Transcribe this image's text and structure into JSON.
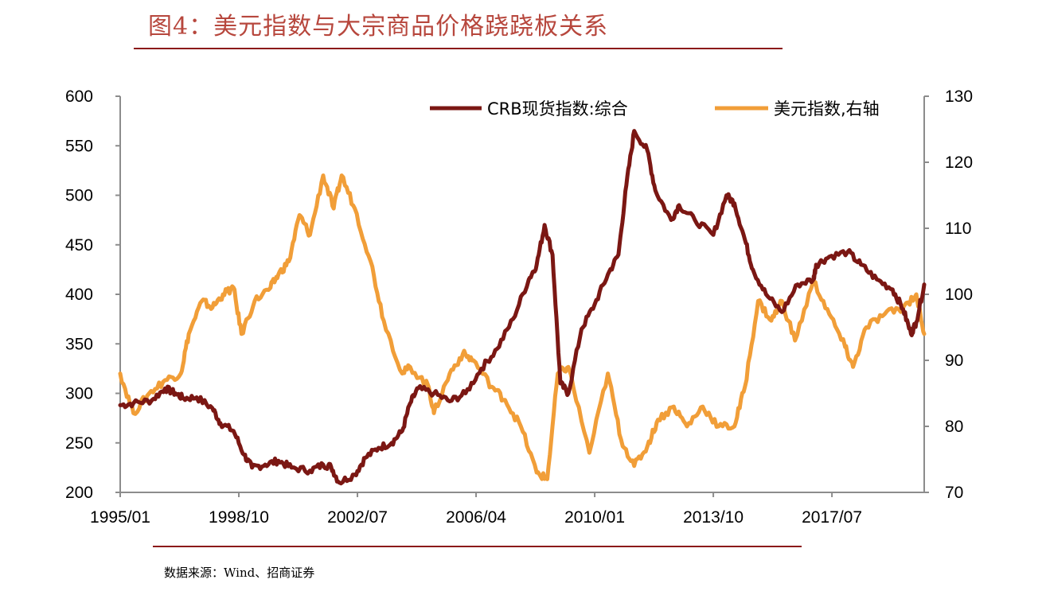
{
  "title": "图4：美元指数与大宗商品价格跷跷板关系",
  "source": "数据来源：Wind、招商证券",
  "chart_data": {
    "type": "line",
    "x_tick_labels": [
      "1995/01",
      "1998/10",
      "2002/07",
      "2006/04",
      "2010/01",
      "2013/10",
      "2017/07"
    ],
    "x_range": [
      "1995/01",
      "2020/06"
    ],
    "y_left": {
      "min": 200,
      "max": 600,
      "ticks": [
        200,
        250,
        300,
        350,
        400,
        450,
        500,
        550,
        600
      ]
    },
    "y_right": {
      "min": 70,
      "max": 130,
      "ticks": [
        70,
        80,
        90,
        100,
        110,
        120,
        130
      ]
    },
    "legend_placement": "top-right",
    "series": [
      {
        "name": "CRB现货指数:综合",
        "axis": "left",
        "color": "#7b1713",
        "points": [
          [
            "1995/01",
            288
          ],
          [
            "1995/06",
            290
          ],
          [
            "1996/01",
            293
          ],
          [
            "1996/06",
            305
          ],
          [
            "1996/10",
            300
          ],
          [
            "1997/01",
            295
          ],
          [
            "1997/06",
            296
          ],
          [
            "1997/12",
            285
          ],
          [
            "1998/03",
            270
          ],
          [
            "1998/08",
            262
          ],
          [
            "1998/12",
            238
          ],
          [
            "1999/03",
            225
          ],
          [
            "1999/08",
            228
          ],
          [
            "2000/01",
            232
          ],
          [
            "2000/06",
            225
          ],
          [
            "2001/01",
            222
          ],
          [
            "2001/06",
            228
          ],
          [
            "2001/09",
            226
          ],
          [
            "2001/12",
            210
          ],
          [
            "2002/06",
            218
          ],
          [
            "2002/10",
            235
          ],
          [
            "2003/03",
            245
          ],
          [
            "2003/08",
            250
          ],
          [
            "2003/12",
            262
          ],
          [
            "2004/03",
            290
          ],
          [
            "2004/06",
            305
          ],
          [
            "2004/12",
            300
          ],
          [
            "2005/06",
            292
          ],
          [
            "2005/12",
            300
          ],
          [
            "2006/06",
            325
          ],
          [
            "2006/12",
            345
          ],
          [
            "2007/06",
            375
          ],
          [
            "2007/12",
            415
          ],
          [
            "2008/03",
            430
          ],
          [
            "2008/06",
            470
          ],
          [
            "2008/09",
            440
          ],
          [
            "2008/12",
            310
          ],
          [
            "2009/03",
            300
          ],
          [
            "2009/08",
            365
          ],
          [
            "2010/01",
            390
          ],
          [
            "2010/06",
            420
          ],
          [
            "2010/10",
            440
          ],
          [
            "2011/01",
            510
          ],
          [
            "2011/04",
            565
          ],
          [
            "2011/09",
            545
          ],
          [
            "2011/12",
            505
          ],
          [
            "2012/06",
            475
          ],
          [
            "2012/09",
            490
          ],
          [
            "2013/03",
            475
          ],
          [
            "2013/10",
            460
          ],
          [
            "2014/03",
            500
          ],
          [
            "2014/06",
            492
          ],
          [
            "2014/10",
            455
          ],
          [
            "2015/01",
            425
          ],
          [
            "2015/06",
            400
          ],
          [
            "2015/12",
            382
          ],
          [
            "2016/06",
            410
          ],
          [
            "2016/12",
            415
          ],
          [
            "2017/01",
            430
          ],
          [
            "2017/06",
            438
          ],
          [
            "2018/01",
            443
          ],
          [
            "2018/06",
            430
          ],
          [
            "2018/12",
            415
          ],
          [
            "2019/06",
            405
          ],
          [
            "2019/10",
            385
          ],
          [
            "2020/01",
            360
          ],
          [
            "2020/03",
            372
          ],
          [
            "2020/06",
            410
          ]
        ]
      },
      {
        "name": "美元指数,右轴",
        "axis": "right",
        "color": "#f19e38",
        "points": [
          [
            "1995/01",
            88
          ],
          [
            "1995/06",
            82
          ],
          [
            "1995/12",
            85
          ],
          [
            "1996/06",
            87
          ],
          [
            "1996/12",
            88
          ],
          [
            "1997/03",
            94
          ],
          [
            "1997/08",
            99
          ],
          [
            "1997/12",
            98
          ],
          [
            "1998/04",
            100
          ],
          [
            "1998/08",
            101
          ],
          [
            "1998/11",
            94
          ],
          [
            "1999/04",
            99
          ],
          [
            "1999/10",
            101
          ],
          [
            "2000/01",
            103
          ],
          [
            "2000/05",
            105
          ],
          [
            "2000/09",
            112
          ],
          [
            "2001/01",
            109
          ],
          [
            "2001/06",
            118
          ],
          [
            "2001/10",
            113
          ],
          [
            "2002/01",
            118
          ],
          [
            "2002/06",
            113
          ],
          [
            "2002/12",
            105
          ],
          [
            "2003/05",
            96
          ],
          [
            "2003/12",
            88
          ],
          [
            "2004/03",
            89
          ],
          [
            "2004/10",
            86
          ],
          [
            "2004/12",
            82
          ],
          [
            "2005/06",
            88
          ],
          [
            "2005/11",
            91
          ],
          [
            "2006/03",
            90
          ],
          [
            "2006/10",
            86
          ],
          [
            "2007/03",
            84
          ],
          [
            "2007/09",
            80
          ],
          [
            "2008/03",
            73
          ],
          [
            "2008/07",
            72
          ],
          [
            "2008/11",
            88
          ],
          [
            "2009/03",
            89
          ],
          [
            "2009/11",
            76
          ],
          [
            "2010/06",
            88
          ],
          [
            "2010/11",
            78
          ],
          [
            "2011/04",
            74
          ],
          [
            "2011/09",
            77
          ],
          [
            "2012/01",
            81
          ],
          [
            "2012/07",
            83
          ],
          [
            "2012/12",
            80
          ],
          [
            "2013/06",
            83
          ],
          [
            "2013/12",
            80
          ],
          [
            "2014/06",
            80
          ],
          [
            "2014/10",
            86
          ],
          [
            "2015/03",
            99
          ],
          [
            "2015/08",
            96
          ],
          [
            "2015/12",
            99
          ],
          [
            "2016/05",
            93
          ],
          [
            "2016/12",
            102
          ],
          [
            "2017/06",
            97
          ],
          [
            "2017/12",
            92
          ],
          [
            "2018/03",
            89
          ],
          [
            "2018/08",
            95
          ],
          [
            "2019/03",
            97
          ],
          [
            "2019/10",
            98
          ],
          [
            "2020/03",
            100
          ],
          [
            "2020/06",
            94
          ]
        ]
      }
    ]
  }
}
